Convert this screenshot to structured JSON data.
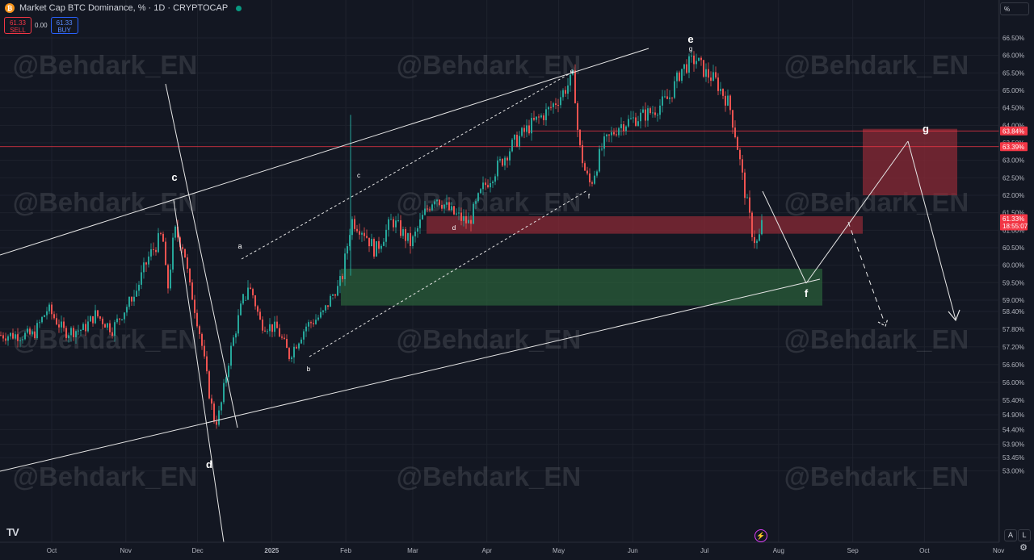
{
  "header": {
    "title": "Market Cap BTC Dominance, % · 1D · CRYPTOCAP",
    "logo_glyph": "₿"
  },
  "trade": {
    "sell_price": "61.33",
    "sell_label": "SELL",
    "spread": "0.00",
    "buy_price": "61.33",
    "buy_label": "BUY"
  },
  "scale_unit": "%",
  "watermark": "@Behdark_EN",
  "corner": {
    "auto": "A",
    "log": "L"
  },
  "chart_data": {
    "type": "candlestick",
    "y_ticks": [
      "66.50%",
      "66.00%",
      "65.50%",
      "65.00%",
      "64.50%",
      "64.00%",
      "63.50%",
      "63.00%",
      "62.50%",
      "62.00%",
      "61.50%",
      "61.00%",
      "60.50%",
      "60.00%",
      "59.50%",
      "59.00%",
      "58.40%",
      "57.80%",
      "57.20%",
      "56.60%",
      "56.00%",
      "55.40%",
      "54.90%",
      "54.40%",
      "53.90%",
      "53.45%",
      "53.00%"
    ],
    "x_ticks": [
      "Oct",
      "Nov",
      "Dec",
      "2025",
      "Feb",
      "Mar",
      "Apr",
      "May",
      "Jun",
      "Jul",
      "Aug",
      "Sep",
      "Oct",
      "Nov"
    ],
    "price_labels": [
      {
        "value": 63.84,
        "text": "63.84%",
        "color": "#f23645"
      },
      {
        "value": 63.39,
        "text": "63.39%",
        "color": "#f23645"
      },
      {
        "value": 61.33,
        "text": "61.33%",
        "sub": "18:55:07",
        "color": "#f23645"
      }
    ],
    "zones": [
      {
        "name": "upper-target-zone",
        "from": 62.0,
        "to": 63.9,
        "color": "#8b2a35"
      },
      {
        "name": "resistance-zone",
        "from": 60.9,
        "to": 61.4,
        "color": "#8b2a35"
      },
      {
        "name": "demand-zone",
        "from": 58.6,
        "to": 59.9,
        "color": "#2a5e3a"
      }
    ],
    "wave_labels": [
      "a",
      "b",
      "c",
      "d",
      "e",
      "f",
      "g",
      "c",
      "d",
      "e",
      "f",
      "g"
    ],
    "path": [
      [
        "2024-09-23",
        57.6
      ],
      [
        "2024-09-29",
        58.5
      ],
      [
        "2024-10-06",
        57.7
      ],
      [
        "2024-10-14",
        57.8
      ],
      [
        "2024-10-19",
        58.3
      ],
      [
        "2024-10-26",
        57.8
      ],
      [
        "2024-11-02",
        58.7
      ],
      [
        "2024-11-10",
        60.2
      ],
      [
        "2024-11-16",
        60.9
      ],
      [
        "2024-11-18",
        59.2
      ],
      [
        "2024-11-21",
        61.0
      ],
      [
        "2024-11-25",
        60.5
      ],
      [
        "2024-11-27",
        59.5
      ],
      [
        "2024-12-02",
        57.5
      ],
      [
        "2024-12-06",
        55.4
      ],
      [
        "2024-12-08",
        54.6
      ],
      [
        "2024-12-10",
        55.0
      ],
      [
        "2024-12-14",
        56.9
      ],
      [
        "2024-12-19",
        58.6
      ],
      [
        "2024-12-22",
        59.5
      ],
      [
        "2024-12-27",
        58.0
      ],
      [
        "2025-01-03",
        57.8
      ],
      [
        "2025-01-08",
        56.9
      ],
      [
        "2025-01-15",
        57.9
      ],
      [
        "2025-01-22",
        58.3
      ],
      [
        "2025-01-30",
        59.6
      ],
      [
        "2025-02-03",
        61.3
      ],
      [
        "2025-02-08",
        61.0
      ],
      [
        "2025-02-13",
        60.4
      ],
      [
        "2025-02-20",
        61.3
      ],
      [
        "2025-02-28",
        60.6
      ],
      [
        "2025-03-05",
        61.4
      ],
      [
        "2025-03-10",
        62.0
      ],
      [
        "2025-03-17",
        61.5
      ],
      [
        "2025-03-24",
        61.2
      ],
      [
        "2025-03-30",
        62.2
      ],
      [
        "2025-04-05",
        62.8
      ],
      [
        "2025-04-12",
        63.5
      ],
      [
        "2025-04-19",
        64.0
      ],
      [
        "2025-04-26",
        64.4
      ],
      [
        "2025-05-01",
        64.8
      ],
      [
        "2025-05-07",
        65.4
      ],
      [
        "2025-05-09",
        63.5
      ],
      [
        "2025-05-12",
        62.6
      ],
      [
        "2025-05-14",
        62.3
      ],
      [
        "2025-05-19",
        63.4
      ],
      [
        "2025-05-26",
        64.0
      ],
      [
        "2025-06-02",
        64.2
      ],
      [
        "2025-06-09",
        64.4
      ],
      [
        "2025-06-16",
        64.8
      ],
      [
        "2025-06-21",
        65.6
      ],
      [
        "2025-06-27",
        65.9
      ],
      [
        "2025-07-01",
        65.5
      ],
      [
        "2025-07-05",
        65.3
      ],
      [
        "2025-07-11",
        64.6
      ],
      [
        "2025-07-14",
        63.6
      ],
      [
        "2025-07-17",
        62.3
      ],
      [
        "2025-07-21",
        60.8
      ],
      [
        "2025-07-23",
        60.6
      ],
      [
        "2025-07-25",
        61.3
      ]
    ]
  }
}
